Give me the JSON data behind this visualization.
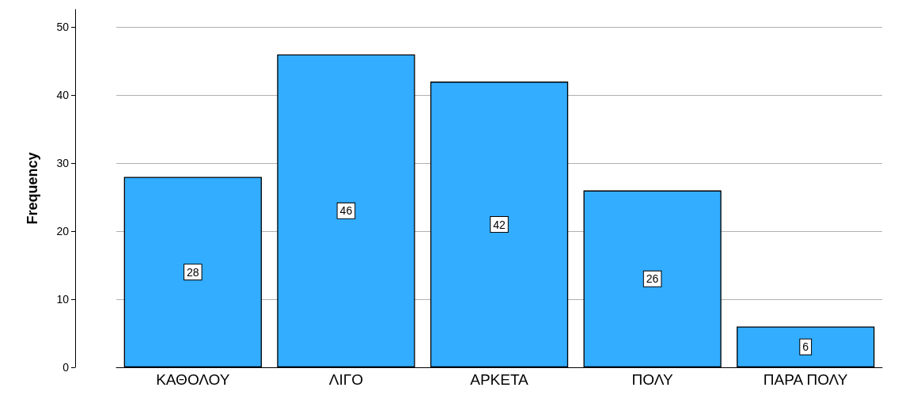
{
  "chart_data": {
    "type": "bar",
    "ylabel": "Frequency",
    "categories": [
      "ΚΑΘΟΛΟΥ",
      "ΛΙΓΟ",
      "ΑΡΚΕΤΑ",
      "ΠΟΛΥ",
      "ΠΑΡΑ ΠΟΛΥ"
    ],
    "values": [
      28,
      46,
      42,
      26,
      6
    ],
    "color": "#33adff",
    "ylim": [
      0,
      52.6
    ],
    "yticks": [
      0,
      10,
      20,
      30,
      40,
      50
    ],
    "grid": "y",
    "data_labels": true
  }
}
